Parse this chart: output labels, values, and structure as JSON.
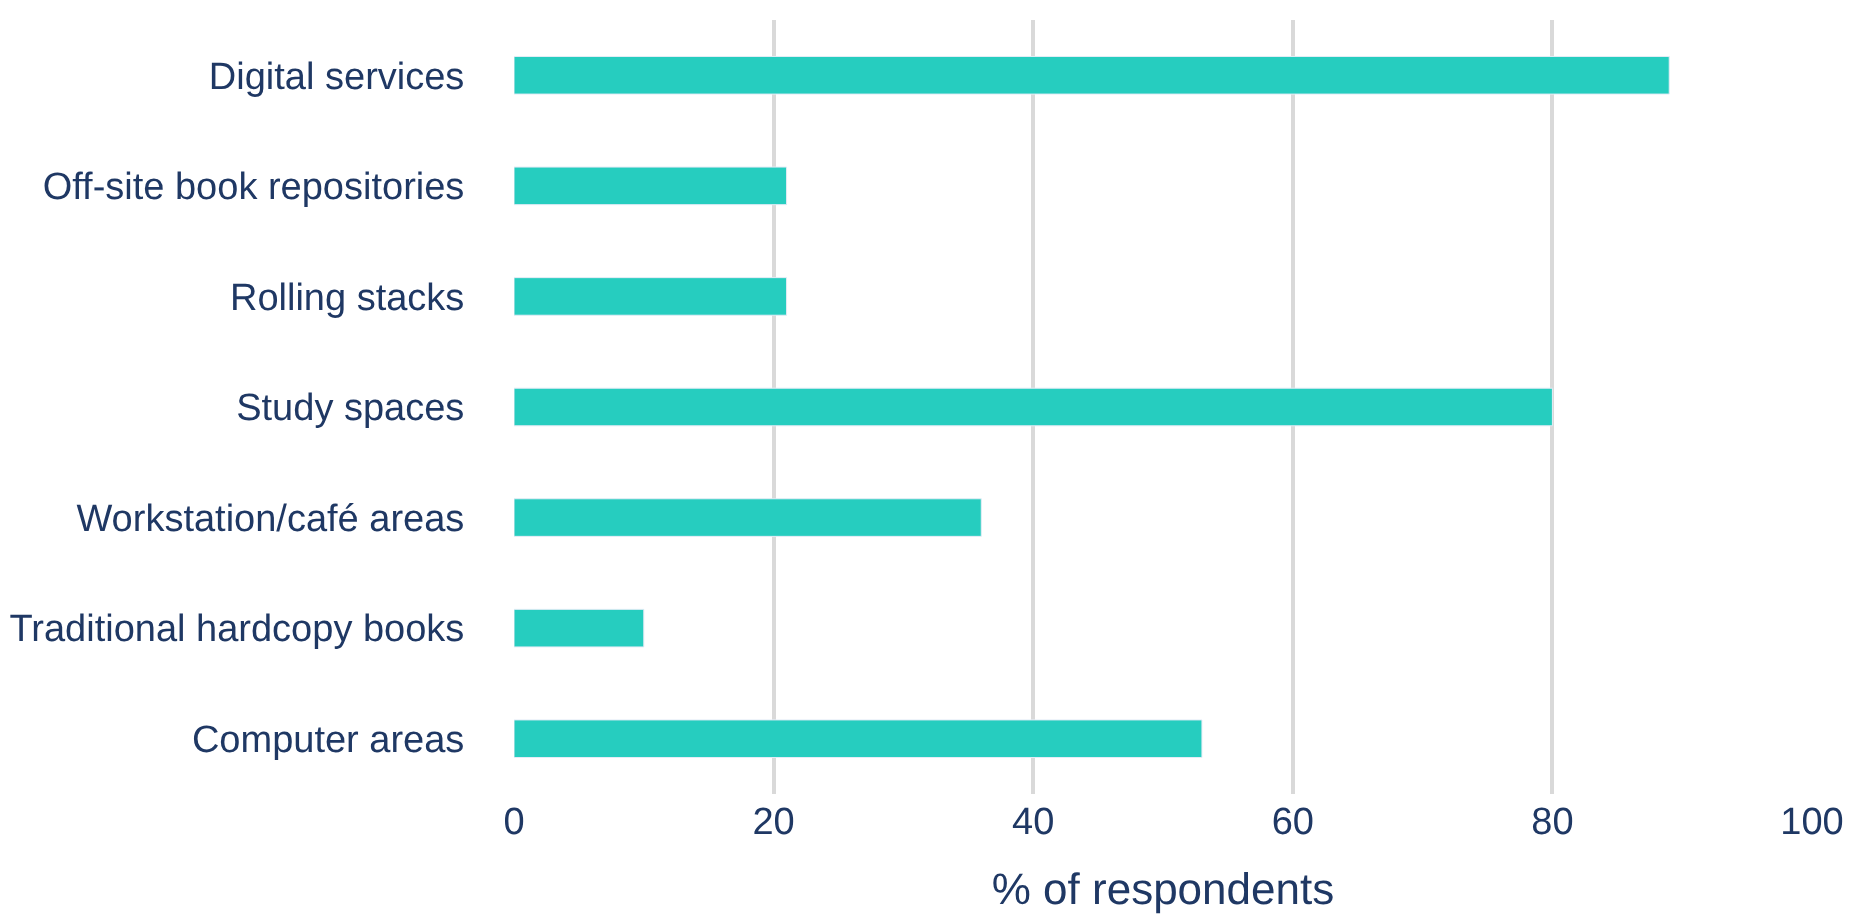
{
  "chart_data": {
    "type": "bar",
    "orientation": "horizontal",
    "xlabel": "% of respondents",
    "categories": [
      "Digital services",
      "Off-site book repositories",
      "Rolling stacks",
      "Study spaces",
      "Workstation/café areas",
      "Traditional hardcopy books",
      "Computer areas"
    ],
    "values": [
      89,
      21,
      21,
      80,
      36,
      10,
      53
    ],
    "color": "#26cdbf",
    "xlim": [
      0,
      100
    ],
    "xticks": [
      0,
      20,
      40,
      60,
      80,
      100
    ],
    "grid": "x"
  }
}
